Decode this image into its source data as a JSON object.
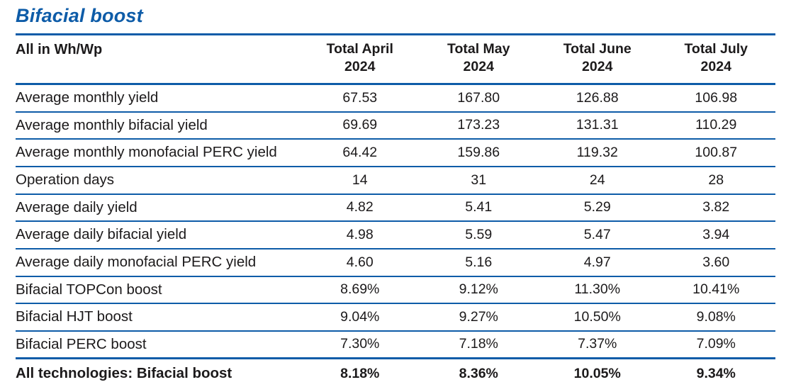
{
  "page": {
    "title": "Bifacial boost"
  },
  "colors": {
    "accent_blue": "#0e5ca8",
    "text_dark": "#1c1a1b"
  },
  "table": {
    "unit_label": "All in Wh/Wp",
    "columns": [
      {
        "line1": "Total April",
        "line2": "2024"
      },
      {
        "line1": "Total May",
        "line2": "2024"
      },
      {
        "line1": "Total June",
        "line2": "2024"
      },
      {
        "line1": "Total July",
        "line2": "2024"
      }
    ],
    "rows": [
      {
        "label": "Average monthly yield",
        "values": [
          "67.53",
          "167.80",
          "126.88",
          "106.98"
        ]
      },
      {
        "label": "Average monthly bifacial yield",
        "values": [
          "69.69",
          "173.23",
          "131.31",
          "110.29"
        ]
      },
      {
        "label": "Average monthly monofacial PERC yield",
        "values": [
          "64.42",
          "159.86",
          "119.32",
          "100.87"
        ]
      },
      {
        "label": "Operation days",
        "values": [
          "14",
          "31",
          "24",
          "28"
        ]
      },
      {
        "label": "Average daily yield",
        "values": [
          "4.82",
          "5.41",
          "5.29",
          "3.82"
        ]
      },
      {
        "label": "Average daily bifacial yield",
        "values": [
          "4.98",
          "5.59",
          "5.47",
          "3.94"
        ]
      },
      {
        "label": "Average daily monofacial PERC yield",
        "values": [
          "4.60",
          "5.16",
          "4.97",
          "3.60"
        ]
      },
      {
        "label": "Bifacial TOPCon boost",
        "values": [
          "8.69%",
          "9.12%",
          "11.30%",
          "10.41%"
        ]
      },
      {
        "label": "Bifacial HJT boost",
        "values": [
          "9.04%",
          "9.27%",
          "10.50%",
          "9.08%"
        ]
      },
      {
        "label": "Bifacial PERC boost",
        "values": [
          "7.30%",
          "7.18%",
          "7.37%",
          "7.09%"
        ]
      },
      {
        "label": "All technologies: Bifacial boost",
        "values": [
          "8.18%",
          "8.36%",
          "10.05%",
          "9.34%"
        ]
      }
    ]
  }
}
